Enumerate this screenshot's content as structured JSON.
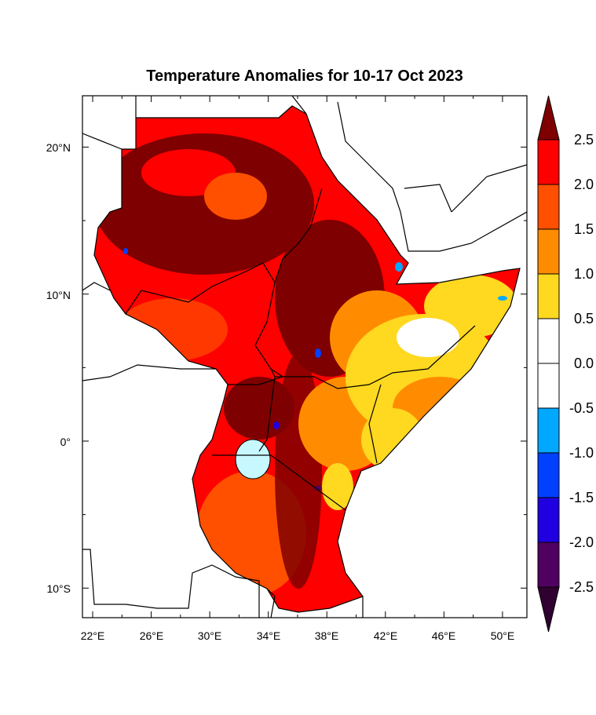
{
  "title": "Temperature Anomalies for 10-17 Oct 2023",
  "lon_labels": [
    "22°E",
    "26°E",
    "30°E",
    "34°E",
    "38°E",
    "42°E",
    "46°E",
    "50°E"
  ],
  "lat_labels": [
    "20°N",
    "10°N",
    "0°",
    "10°S"
  ],
  "colorbar": {
    "labels": [
      "2.5",
      "2.0",
      "1.5",
      "1.0",
      "0.5",
      "0.0",
      "-0.5",
      "-1.0",
      "-1.5",
      "-2.0",
      "-2.5"
    ],
    "over_color": "#7f0000",
    "under_color": "#300030",
    "colors": [
      "#ff0000",
      "#ff5000",
      "#ff8c00",
      "#ffd820",
      "#ffffff",
      "#ffffff",
      "#00a8ff",
      "#0040ff",
      "#2000e0",
      "#500060"
    ]
  }
}
